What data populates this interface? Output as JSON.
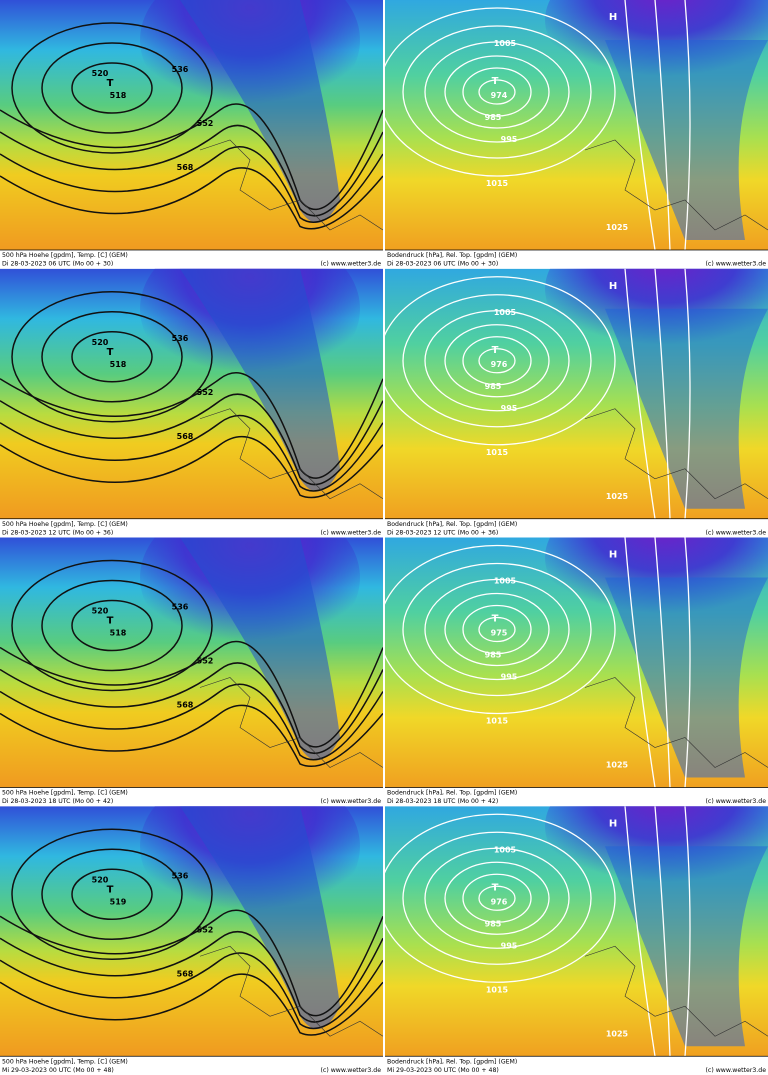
{
  "panels": [
    {
      "caption": "500 hPa Hoehe [gpdm], Temp. [C] (GEM)",
      "time": "Di 28-03-2023 06 UTC (Mo 00 + 30)",
      "credit": "(c) www.wetter3.de",
      "labels": [
        "T",
        "518",
        "520",
        "536",
        "552",
        "568"
      ]
    },
    {
      "caption": "Bodendruck [hPa], Rel. Top. [gpdm] (GEM)",
      "time": "Di 28-03-2023 06 UTC (Mo 00 + 30)",
      "credit": "(c) www.wetter3.de",
      "labels": [
        "T",
        "974",
        "985",
        "995",
        "1005",
        "1015",
        "1025",
        "H"
      ]
    },
    {
      "caption": "500 hPa Hoehe [gpdm], Temp. [C] (GEM)",
      "time": "Di 28-03-2023 12 UTC (Mo 00 + 36)",
      "credit": "(c) www.wetter3.de",
      "labels": [
        "T",
        "518",
        "520",
        "536",
        "552",
        "568"
      ]
    },
    {
      "caption": "Bodendruck [hPa], Rel. Top. [gpdm] (GEM)",
      "time": "Di 28-03-2023 12 UTC (Mo 00 + 36)",
      "credit": "(c) www.wetter3.de",
      "labels": [
        "T",
        "976",
        "985",
        "995",
        "1005",
        "1015",
        "1025",
        "H"
      ]
    },
    {
      "caption": "500 hPa Hoehe [gpdm], Temp. [C] (GEM)",
      "time": "Di 28-03-2023 18 UTC (Mo 00 + 42)",
      "credit": "(c) www.wetter3.de",
      "labels": [
        "T",
        "518",
        "520",
        "536",
        "552",
        "568"
      ]
    },
    {
      "caption": "Bodendruck [hPa], Rel. Top. [gpdm] (GEM)",
      "time": "Di 28-03-2023 18 UTC (Mo 00 + 42)",
      "credit": "(c) www.wetter3.de",
      "labels": [
        "T",
        "975",
        "985",
        "995",
        "1005",
        "1015",
        "1025",
        "H"
      ]
    },
    {
      "caption": "500 hPa Hoehe [gpdm], Temp. [C] (GEM)",
      "time": "Mi 29-03-2023 00 UTC (Mo 00 + 48)",
      "credit": "(c) www.wetter3.de",
      "labels": [
        "T",
        "519",
        "520",
        "536",
        "552",
        "568"
      ]
    },
    {
      "caption": "Bodendruck [hPa], Rel. Top. [gpdm] (GEM)",
      "time": "Mi 29-03-2023 00 UTC (Mo 00 + 48)",
      "credit": "(c) www.wetter3.de",
      "labels": [
        "T",
        "976",
        "985",
        "995",
        "1005",
        "1015",
        "1025",
        "H"
      ]
    }
  ]
}
